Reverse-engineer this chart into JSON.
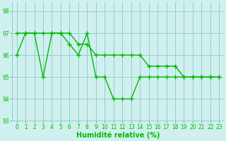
{
  "x": [
    0,
    1,
    2,
    3,
    4,
    5,
    6,
    7,
    8,
    9,
    10,
    11,
    12,
    13,
    14,
    15,
    16,
    17,
    18,
    19,
    20,
    21,
    22,
    23
  ],
  "series1": [
    96,
    97,
    97,
    95,
    97,
    97,
    96.5,
    96,
    97,
    95,
    95,
    94,
    94,
    94,
    95,
    95,
    95,
    95,
    95,
    95,
    95,
    95,
    95,
    95
  ],
  "series2": [
    97,
    97,
    97,
    97,
    97,
    97,
    97,
    96.5,
    96.5,
    96,
    96,
    96,
    96,
    96,
    96,
    95.5,
    95.5,
    95.5,
    95.5,
    95,
    95,
    95,
    95,
    95
  ],
  "line_color": "#00bb00",
  "bg_color": "#cff0ee",
  "grid_color": "#99cccc",
  "xlabel": "Humidité relative (%)",
  "ylim": [
    93,
    98.4
  ],
  "xlim": [
    -0.5,
    23.5
  ],
  "yticks": [
    93,
    94,
    95,
    96,
    97,
    98
  ],
  "xticks": [
    0,
    1,
    2,
    3,
    4,
    5,
    6,
    7,
    8,
    9,
    10,
    11,
    12,
    13,
    14,
    15,
    16,
    17,
    18,
    19,
    20,
    21,
    22,
    23
  ],
  "marker": "+",
  "linewidth": 1.0,
  "markersize": 4,
  "tick_fontsize": 5.5,
  "xlabel_fontsize": 7
}
